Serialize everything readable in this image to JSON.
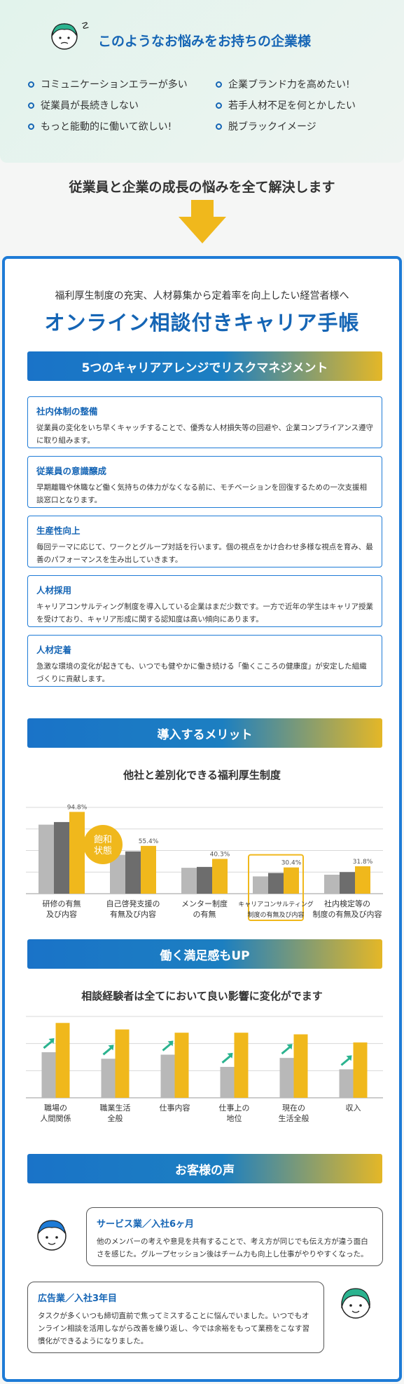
{
  "header": {
    "title": "このようなお悩みをお持ちの企業様",
    "worries_left": [
      "コミュニケーションエラーが多い",
      "従業員が長続きしない",
      "もっと能動的に働いて欲しい!"
    ],
    "worries_right": [
      "企業ブランド力を高めたい!",
      "若手人材不足を何とかしたい",
      "脱ブラックイメージ"
    ],
    "solve_text": "従業員と企業の成長の悩みを全て解決します"
  },
  "card": {
    "subtitle": "福利厚生制度の充実、人材募集から定着率を向上したい経営者様へ",
    "title": "オンライン相談付きキャリア手帳",
    "banner1": "5つのキャリアアレンジでリスクマネジメント",
    "items": [
      {
        "heading": "社内体制の整備",
        "text": "従業員の変化をいち早くキャッチすることで、優秀な人材損失等の回避や、企業コンプライアンス遵守に取り組みます。"
      },
      {
        "heading": "従業員の意識醸成",
        "text": "早期離職や休職など働く気持ちの体力がなくなる前に、モチベーションを回復するための一次支援相談窓口となります。"
      },
      {
        "heading": "生産性向上",
        "text": "毎回テーマに応じて、ワークとグループ対話を行います。個の視点をかけ合わせ多様な視点を育み、最善のパフォーマンスを生み出していきます。"
      },
      {
        "heading": "人材採用",
        "text": "キャリアコンサルティング制度を導入している企業はまだ少数です。一方で近年の学生はキャリア授業を受けており、キャリア形成に関する認知度は高い傾向にあります。"
      },
      {
        "heading": "人材定着",
        "text": "急激な環境の変化が起きても、いつでも健やかに働き続ける「働くこころの健康度」が安定した組織づくりに貢献します。"
      }
    ],
    "banner2": "導入するメリット",
    "banner3": "働く満足感もUP",
    "banner4": "お客様の声",
    "voices": [
      {
        "heading": "サービス業／入社6ヶ月",
        "text": "他のメンバーの考えや意見を共有することで、考え方が同じでも伝え方が違う面白さを感じた。グループセッション後はチーム力も向上し仕事がやりやすくなった。"
      },
      {
        "heading": "広告業／入社3年目",
        "text": "タスクが多くいつも締切直前で焦ってミスすることに悩んでいました。いつでもオンライン相談を活用しながら改善を繰り返し、今では余裕をもって業務をこなす習慣化ができるようになりました。"
      }
    ]
  },
  "chart_data": [
    {
      "type": "bar",
      "title": "他社と差別化できる福利厚生制度",
      "categories": [
        "研修の有無\n及び内容",
        "自己啓発支援の\n有無及び内容",
        "メンター制度\nの有無",
        "キャリアコンサルティング\n制度の有無及び内容",
        "社内検定等の\n制度の有無及び内容"
      ],
      "series": [
        {
          "values": [
            80,
            45,
            30,
            20,
            22
          ]
        },
        {
          "values": [
            83,
            49,
            31,
            24,
            25
          ]
        },
        {
          "values": [
            94.8,
            55.4,
            40.3,
            30.4,
            31.8
          ]
        }
      ],
      "data_labels": [
        "94.8%",
        "55.4%",
        "40.3%",
        "30.4%",
        "31.8%"
      ],
      "annotation": "飽和\n状態",
      "highlight_category": 3,
      "colors": [
        "#b8b8b8",
        "#6d6d6d",
        "#f0b81c"
      ],
      "ylim": [
        0,
        100
      ]
    },
    {
      "type": "bar",
      "title": "相談経験者は全てにおいて良い影響に変化がでます",
      "categories": [
        "職場の\n人間関係",
        "職業生活\n全般",
        "仕事内容",
        "仕事上の\n地位",
        "現在の\n生活全般",
        "収入"
      ],
      "series": [
        {
          "values": [
            56,
            48,
            53,
            38,
            49,
            35
          ]
        },
        {
          "values": [
            92,
            84,
            80,
            80,
            78,
            68
          ]
        }
      ],
      "colors": [
        "#b8b8b8",
        "#f0b81c"
      ],
      "ylim": [
        0,
        100
      ]
    }
  ],
  "colors": {
    "brand_blue": "#1565b5",
    "accent_yellow": "#f0b81c",
    "border_blue": "#1e7bd6"
  }
}
